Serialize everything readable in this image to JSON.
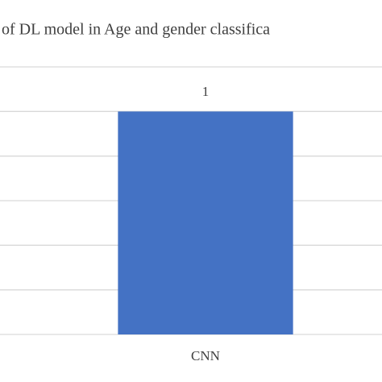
{
  "chart_data": {
    "type": "bar",
    "title": "of DL model in Age and gender classifica",
    "categories": [
      "CNN"
    ],
    "values": [
      1
    ],
    "color": "#4472c4",
    "ylim": [
      0,
      1.2
    ],
    "yticks": [
      0,
      0.2,
      0.4,
      0.6,
      0.8,
      1,
      1.2
    ],
    "grid": true
  }
}
